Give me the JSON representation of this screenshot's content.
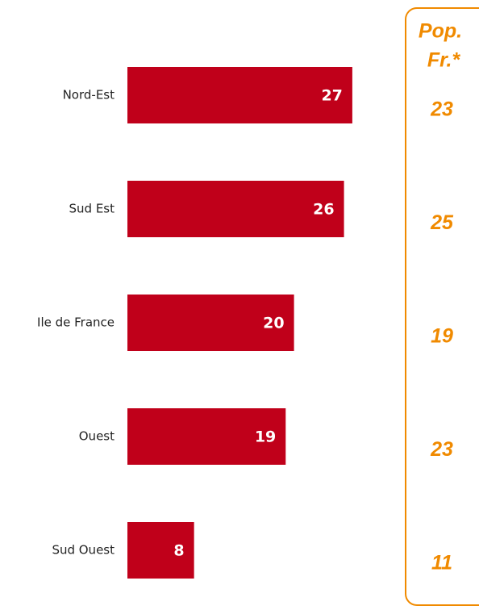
{
  "chart_data": {
    "type": "bar",
    "orientation": "horizontal",
    "categories": [
      "Nord-Est",
      "Sud Est",
      "Ile de France",
      "Ouest",
      "Sud Ouest"
    ],
    "values": [
      27,
      26,
      20,
      19,
      8
    ],
    "color": "#c0001a",
    "comparison": {
      "title": [
        "Pop.",
        "Fr.*"
      ],
      "values": [
        23,
        25,
        19,
        23,
        11
      ],
      "color": "#f08a00"
    }
  }
}
